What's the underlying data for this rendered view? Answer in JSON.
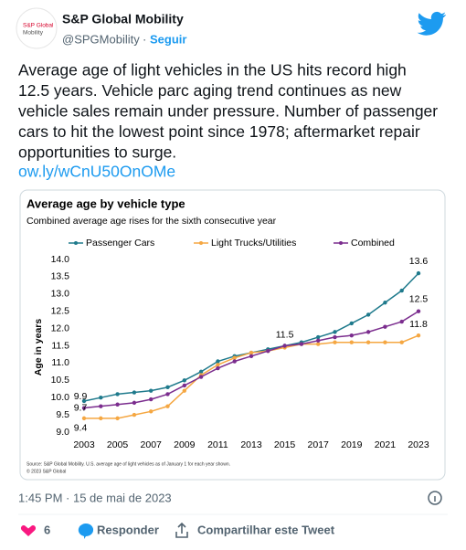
{
  "tweet": {
    "logo_text": [
      "S&P Global",
      "Mobility"
    ],
    "author_name": "S&P Global Mobility",
    "handle": "@SPGMobility",
    "separator": "·",
    "follow": "Seguir",
    "body_lines": [
      "Average age of light vehicles in the US hits record high",
      "12.5 years. Vehicle parc aging trend continues as new",
      "vehicle sales remain under pressure. Number of passenger",
      "cars to hit the lowest point since 1978; aftermarket repair",
      "opportunities to surge."
    ],
    "link": "ow.ly/wCnU50OnOMe",
    "timestamp": "1:45 PM · 15 de mai de 2023",
    "likes": "6",
    "reply": "Responder",
    "share": "Compartilhar este Tweet"
  },
  "chart_data": {
    "type": "line",
    "title": "Average age by vehicle type",
    "subtitle": "Combined average age rises for the sixth consecutive year",
    "y_label": "Age in years",
    "x": [
      2003,
      2004,
      2005,
      2006,
      2007,
      2008,
      2009,
      2010,
      2011,
      2012,
      2013,
      2014,
      2015,
      2016,
      2017,
      2018,
      2019,
      2020,
      2021,
      2022,
      2023
    ],
    "xlim": [
      2003,
      2023
    ],
    "xticks": [
      2003,
      2005,
      2007,
      2009,
      2011,
      2013,
      2015,
      2017,
      2019,
      2021,
      2023
    ],
    "ylim": [
      9,
      14
    ],
    "yticks": [
      {
        "value": 9,
        "label": "9.0"
      },
      9.5,
      {
        "value": 10,
        "label": "10.0"
      },
      10.5,
      {
        "value": 11,
        "label": "11.0"
      },
      11.5,
      {
        "value": 12,
        "label": "12.0"
      },
      12.5,
      {
        "value": 13,
        "label": "13.0"
      },
      13.5,
      {
        "value": 14,
        "label": "14.0"
      }
    ],
    "series": [
      {
        "name": "Passenger Cars",
        "color": "#1f7a8c",
        "values": [
          9.9,
          10.0,
          10.1,
          10.15,
          10.2,
          10.3,
          10.5,
          10.75,
          11.05,
          11.2,
          11.3,
          11.4,
          11.5,
          11.6,
          11.75,
          11.9,
          12.15,
          12.4,
          12.75,
          13.1,
          13.6
        ],
        "value_labels": [
          "9.9",
          null,
          null,
          null,
          null,
          null,
          null,
          null,
          null,
          null,
          null,
          null,
          null,
          null,
          null,
          null,
          null,
          null,
          null,
          null,
          "13.6"
        ]
      },
      {
        "name": "Light Trucks/Utilities",
        "color": "#f5a742",
        "values": [
          9.4,
          9.4,
          9.4,
          9.5,
          9.6,
          9.75,
          10.2,
          10.65,
          10.95,
          11.15,
          11.3,
          11.35,
          11.45,
          11.55,
          11.55,
          11.6,
          11.6,
          11.6,
          11.6,
          11.6,
          11.8
        ],
        "value_labels": [
          "9.4",
          null,
          null,
          null,
          null,
          null,
          null,
          null,
          null,
          null,
          null,
          null,
          null,
          null,
          null,
          null,
          null,
          null,
          null,
          null,
          "11.8"
        ]
      },
      {
        "name": "Combined",
        "color": "#7b2d8e",
        "values": [
          9.7,
          9.75,
          9.8,
          9.85,
          9.95,
          10.1,
          10.35,
          10.6,
          10.85,
          11.05,
          11.2,
          11.35,
          11.5,
          11.55,
          11.65,
          11.75,
          11.8,
          11.9,
          12.05,
          12.2,
          12.5
        ],
        "value_labels": [
          "9.7",
          null,
          null,
          null,
          null,
          null,
          null,
          null,
          null,
          null,
          null,
          null,
          "11.5",
          null,
          null,
          null,
          null,
          null,
          null,
          null,
          "12.5"
        ]
      }
    ],
    "source_lines": [
      "Source: S&P Global Mobility. U.S. average age of light vehicles as of January 1 for each year shown.",
      "© 2023 S&P Global"
    ]
  }
}
